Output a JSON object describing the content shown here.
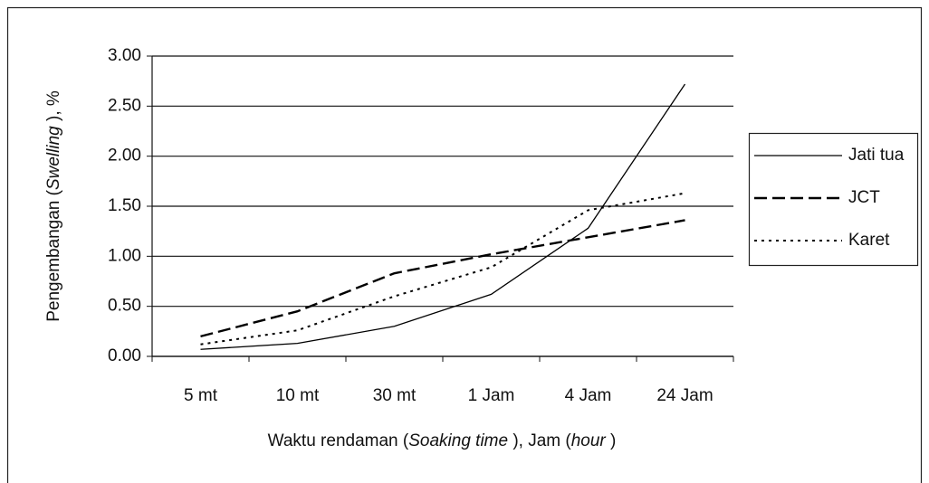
{
  "chart_data": {
    "type": "line",
    "xlabel": [
      {
        "text": "Waktu rendaman ("
      },
      {
        "text": "Soaking time",
        "italic": true
      },
      {
        "text": " ), Jam ("
      },
      {
        "text": "hour",
        "italic": true
      },
      {
        "text": " )"
      }
    ],
    "ylabel": [
      {
        "text": "Pengembangan ("
      },
      {
        "text": "Swelling",
        "italic": true
      },
      {
        "text": " ), %"
      }
    ],
    "categories": [
      "5 mt",
      "10 mt",
      "30 mt",
      "1 Jam",
      "4 Jam",
      "24 Jam"
    ],
    "series": [
      {
        "name": "Jati tua",
        "color": "#000000",
        "dash": "solid",
        "values": [
          0.07,
          0.13,
          0.3,
          0.62,
          1.28,
          2.72
        ]
      },
      {
        "name": "JCT",
        "color": "#000000",
        "dash": "dashed",
        "values": [
          0.2,
          0.45,
          0.83,
          1.02,
          1.19,
          1.36
        ]
      },
      {
        "name": "Karet",
        "color": "#000000",
        "dash": "dotted",
        "values": [
          0.12,
          0.26,
          0.6,
          0.89,
          1.46,
          1.63
        ]
      }
    ],
    "ylim": [
      0,
      3
    ],
    "yticks": [
      {
        "value": 0,
        "label": "0.00"
      },
      {
        "value": 0.5,
        "label": "0.50"
      },
      {
        "value": 1,
        "label": "1.00"
      },
      {
        "value": 1.5,
        "label": "1.50"
      },
      {
        "value": 2,
        "label": "2.00"
      },
      {
        "value": 2.5,
        "label": "2.50"
      },
      {
        "value": 3,
        "label": "3.00"
      }
    ],
    "grid": true,
    "legend": "right"
  }
}
